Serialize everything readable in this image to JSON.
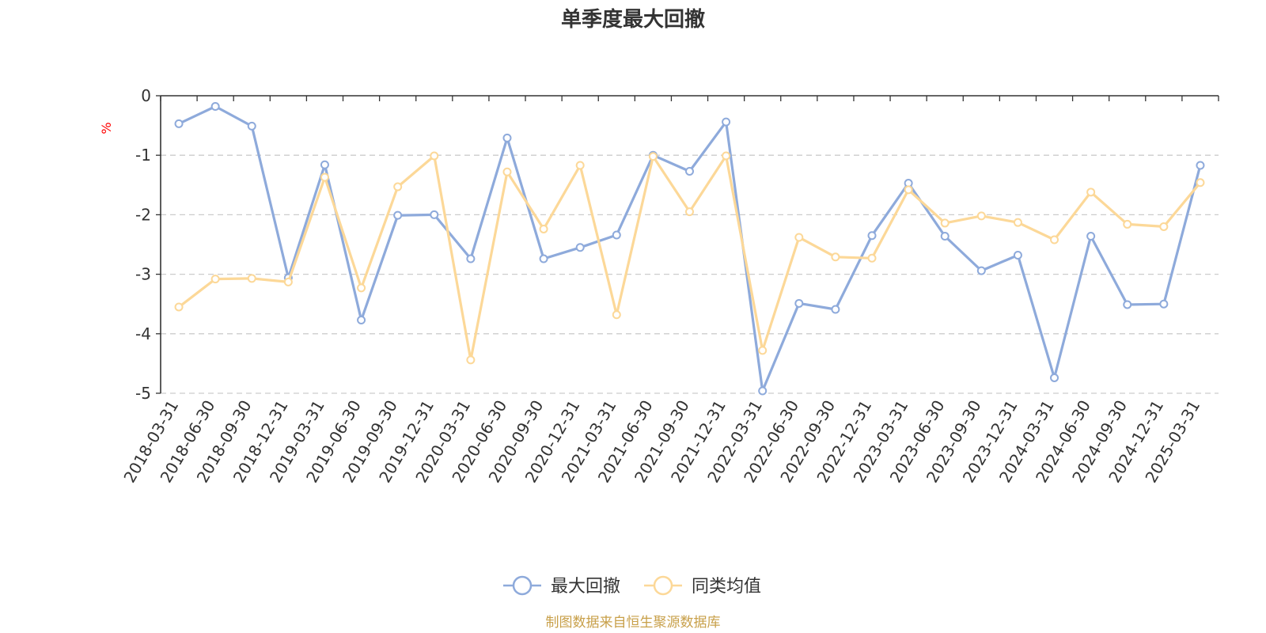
{
  "chart_data": {
    "type": "line",
    "title": "单季度最大回撤",
    "ylabel": "%",
    "ylim": [
      -5,
      0
    ],
    "yticks": [
      0,
      -1,
      -2,
      -3,
      -4,
      -5
    ],
    "grid": true,
    "legend_position": "bottom",
    "x": [
      "2018-03-31",
      "2018-06-30",
      "2018-09-30",
      "2018-12-31",
      "2019-03-31",
      "2019-06-30",
      "2019-09-30",
      "2019-12-31",
      "2020-03-31",
      "2020-06-30",
      "2020-09-30",
      "2020-12-31",
      "2021-03-31",
      "2021-06-30",
      "2021-09-30",
      "2021-12-31",
      "2022-03-31",
      "2022-06-30",
      "2022-09-30",
      "2022-12-31",
      "2023-03-31",
      "2023-06-30",
      "2023-09-30",
      "2023-12-31",
      "2024-03-31",
      "2024-06-30",
      "2024-09-30",
      "2024-12-31",
      "2025-03-31"
    ],
    "series": [
      {
        "name": "最大回撤",
        "color": "#8eaadb",
        "values": [
          -0.47,
          -0.18,
          -0.51,
          -3.06,
          -1.16,
          -3.77,
          -2.01,
          -2.0,
          -2.74,
          -0.71,
          -2.74,
          -2.55,
          -2.34,
          -1.0,
          -1.27,
          -0.44,
          -4.96,
          -3.49,
          -3.59,
          -2.35,
          -1.47,
          -2.36,
          -2.94,
          -2.68,
          -4.74,
          -2.36,
          -3.51,
          -3.5,
          -1.17
        ]
      },
      {
        "name": "同类均值",
        "color": "#fcd898",
        "values": [
          -3.55,
          -3.08,
          -3.07,
          -3.13,
          -1.37,
          -3.23,
          -1.53,
          -1.01,
          -4.44,
          -1.28,
          -2.24,
          -1.17,
          -3.68,
          -1.02,
          -1.95,
          -1.01,
          -4.28,
          -2.38,
          -2.71,
          -2.73,
          -1.58,
          -2.14,
          -2.02,
          -2.13,
          -2.42,
          -1.62,
          -2.16,
          -2.2,
          -1.46
        ]
      }
    ]
  },
  "footer": {
    "source": "制图数据来自恒生聚源数据库"
  }
}
